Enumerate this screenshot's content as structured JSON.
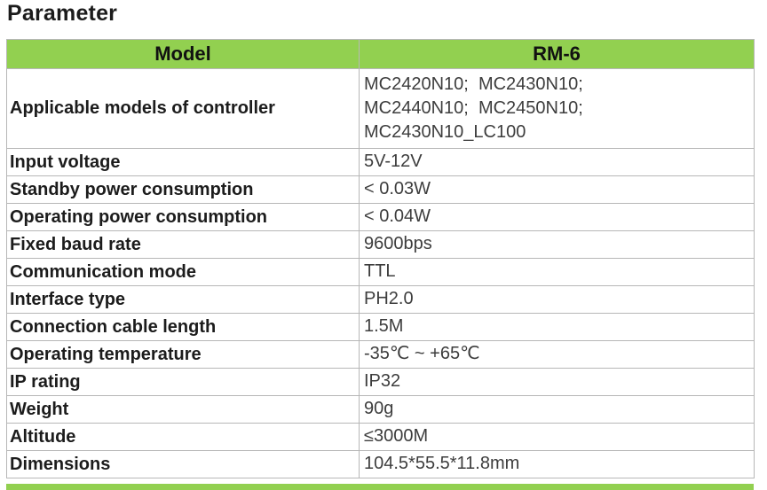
{
  "page_title": "Parameter",
  "accent_color": "#92D050",
  "border_color": "#b7b7b7",
  "table": {
    "header": {
      "col1": "Model",
      "col2": "RM-6"
    },
    "rows": [
      {
        "label": "Applicable models of controller",
        "value": "MC2420N10;  MC2430N10;\nMC2440N10;  MC2450N10;\nMC2430N10_LC100"
      },
      {
        "label": "Input voltage",
        "value": "5V-12V"
      },
      {
        "label": "Standby power consumption",
        "value": "< 0.03W"
      },
      {
        "label": "Operating power consumption",
        "value": "< 0.04W"
      },
      {
        "label": "Fixed baud rate",
        "value": "9600bps"
      },
      {
        "label": "Communication mode",
        "value": "TTL"
      },
      {
        "label": "Interface type",
        "value": "PH2.0"
      },
      {
        "label": "Connection cable length",
        "value": "1.5M"
      },
      {
        "label": "Operating temperature",
        "value": "-35℃ ~ +65℃"
      },
      {
        "label": "IP rating",
        "value": "IP32"
      },
      {
        "label": "Weight",
        "value": "90g"
      },
      {
        "label": "Altitude",
        "value": "≤3000M"
      },
      {
        "label": "Dimensions",
        "value": "104.5*55.5*11.8mm"
      }
    ]
  }
}
